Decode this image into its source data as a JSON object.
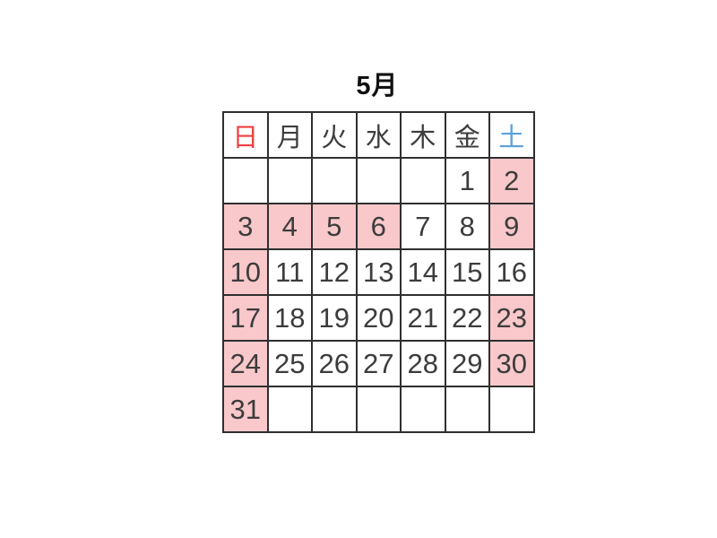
{
  "calendar": {
    "title": "5月",
    "weekdays": [
      {
        "label": "日",
        "type": "sunday",
        "key": "sun"
      },
      {
        "label": "月",
        "type": "weekday",
        "key": "mon"
      },
      {
        "label": "火",
        "type": "weekday",
        "key": "tue"
      },
      {
        "label": "水",
        "type": "weekday",
        "key": "wed"
      },
      {
        "label": "木",
        "type": "weekday",
        "key": "thu"
      },
      {
        "label": "金",
        "type": "weekday",
        "key": "fri"
      },
      {
        "label": "土",
        "type": "saturday",
        "key": "sat"
      }
    ],
    "weeks": [
      [
        {
          "day": "",
          "highlighted": false
        },
        {
          "day": "",
          "highlighted": false
        },
        {
          "day": "",
          "highlighted": false
        },
        {
          "day": "",
          "highlighted": false
        },
        {
          "day": "",
          "highlighted": false
        },
        {
          "day": "1",
          "highlighted": false
        },
        {
          "day": "2",
          "highlighted": true
        }
      ],
      [
        {
          "day": "3",
          "highlighted": true
        },
        {
          "day": "4",
          "highlighted": true
        },
        {
          "day": "5",
          "highlighted": true
        },
        {
          "day": "6",
          "highlighted": true
        },
        {
          "day": "7",
          "highlighted": false
        },
        {
          "day": "8",
          "highlighted": false
        },
        {
          "day": "9",
          "highlighted": true
        }
      ],
      [
        {
          "day": "10",
          "highlighted": true
        },
        {
          "day": "11",
          "highlighted": false
        },
        {
          "day": "12",
          "highlighted": false
        },
        {
          "day": "13",
          "highlighted": false
        },
        {
          "day": "14",
          "highlighted": false
        },
        {
          "day": "15",
          "highlighted": false
        },
        {
          "day": "16",
          "highlighted": false
        }
      ],
      [
        {
          "day": "17",
          "highlighted": true
        },
        {
          "day": "18",
          "highlighted": false
        },
        {
          "day": "19",
          "highlighted": false
        },
        {
          "day": "20",
          "highlighted": false
        },
        {
          "day": "21",
          "highlighted": false
        },
        {
          "day": "22",
          "highlighted": false
        },
        {
          "day": "23",
          "highlighted": true
        }
      ],
      [
        {
          "day": "24",
          "highlighted": true
        },
        {
          "day": "25",
          "highlighted": false
        },
        {
          "day": "26",
          "highlighted": false
        },
        {
          "day": "27",
          "highlighted": false
        },
        {
          "day": "28",
          "highlighted": false
        },
        {
          "day": "29",
          "highlighted": false
        },
        {
          "day": "30",
          "highlighted": true
        }
      ],
      [
        {
          "day": "31",
          "highlighted": true
        },
        {
          "day": "",
          "highlighted": false
        },
        {
          "day": "",
          "highlighted": false
        },
        {
          "day": "",
          "highlighted": false
        },
        {
          "day": "",
          "highlighted": false
        },
        {
          "day": "",
          "highlighted": false
        },
        {
          "day": "",
          "highlighted": false
        }
      ]
    ],
    "colors": {
      "highlight_pink": "#f9c8ca",
      "sunday_red": "#ee4040",
      "saturday_blue": "#5aa2dc",
      "day_text": "#3c3c3c",
      "grid_border": "#2f2f2f",
      "title_text": "#111111"
    }
  }
}
